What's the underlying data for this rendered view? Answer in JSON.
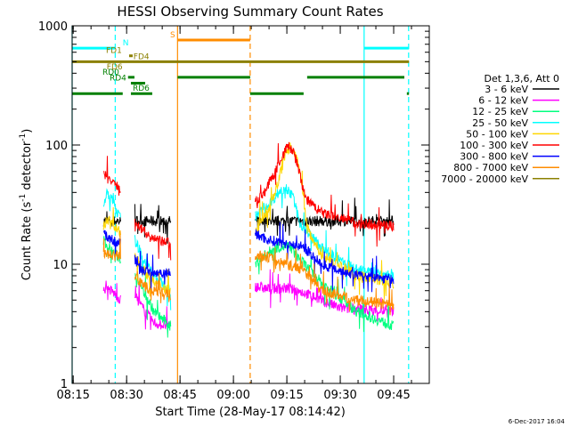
{
  "chart_data": {
    "type": "line",
    "title": "HESSI Observing Summary Count Rates",
    "xlabel": "Start Time (28-May-17 08:14:42)",
    "ylabel_parts": [
      "Count Rate (s",
      "-1",
      " detector",
      "-1",
      ")"
    ],
    "y_log": true,
    "ylim": [
      1,
      1000
    ],
    "xlim_minutes": [
      0,
      100.3
    ],
    "x_ticks": [
      {
        "label": "08:15",
        "min": 0.3
      },
      {
        "label": "08:30",
        "min": 15.3
      },
      {
        "label": "08:45",
        "min": 30.3
      },
      {
        "label": "09:00",
        "min": 45.3
      },
      {
        "label": "09:15",
        "min": 60.3
      },
      {
        "label": "09:30",
        "min": 75.3
      },
      {
        "label": "09:45",
        "min": 90.3
      }
    ],
    "y_ticks": [
      {
        "label": "1",
        "value": 1
      },
      {
        "label": "10",
        "value": 10
      },
      {
        "label": "100",
        "value": 100
      },
      {
        "label": "1000",
        "value": 1000
      }
    ],
    "legend": {
      "placement": "right",
      "title": "Det 1,3,6, Att 0",
      "entries": [
        {
          "label": "3 - 6 keV",
          "color": "#000000"
        },
        {
          "label": "6 - 12 keV",
          "color": "#ff00ff"
        },
        {
          "label": "12 - 25 keV",
          "color": "#00ff7f"
        },
        {
          "label": "25 - 50 keV",
          "color": "#00ffff"
        },
        {
          "label": "50 - 100 keV",
          "color": "#ffd700"
        },
        {
          "label": "100 - 300 keV",
          "color": "#ff0000"
        },
        {
          "label": "300 - 800 keV",
          "color": "#0000ff"
        },
        {
          "label": "800 - 7000 keV",
          "color": "#ff8c00"
        },
        {
          "label": "7000 - 20000 keV",
          "color": "#8b8000"
        }
      ]
    },
    "flag_bars": [
      {
        "label": "N",
        "color": "#00ffff",
        "y": 650,
        "segments": [
          [
            0,
            12
          ],
          [
            82,
            94.6
          ]
        ],
        "label_min": 14.2
      },
      {
        "label": "S",
        "color": "#ff8c00",
        "y": 760,
        "segments": [
          [
            29.6,
            50
          ]
        ],
        "label_min": 27.5
      },
      {
        "label": "FD1",
        "color": "#8b8000",
        "y": 560,
        "segments": [
          [
            16,
            17
          ]
        ],
        "label_min": 9.5
      },
      {
        "label": "FD4",
        "color": "#8b8000",
        "y": 500,
        "segments": [
          [
            0,
            94.6
          ]
        ],
        "label_min": 17.2
      },
      {
        "label": "FD6",
        "color": "#8b8000",
        "y": 410,
        "segments": [],
        "label_min": 9.7
      },
      {
        "label": "RD0",
        "color": "#008000",
        "y": 370,
        "segments": [
          [
            15.7,
            17.5
          ],
          [
            29.6,
            50
          ],
          [
            66,
            93.3
          ]
        ],
        "label_min": 8.5
      },
      {
        "label": "RD4",
        "color": "#008000",
        "y": 330,
        "segments": [
          [
            16.5,
            20.5
          ]
        ],
        "label_min": 10.5
      },
      {
        "label": "RD6",
        "color": "#008000",
        "y": 270,
        "segments": [
          [
            0,
            14.2
          ],
          [
            16.5,
            22.5
          ],
          [
            50,
            65
          ],
          [
            94,
            94.6
          ]
        ],
        "label_min": 17
      }
    ],
    "vertical_lines": [
      {
        "min": 0,
        "color": "#00ffff",
        "style": "solid"
      },
      {
        "min": 12.1,
        "color": "#00ffff",
        "style": "dashed"
      },
      {
        "min": 29.6,
        "color": "#ff8c00",
        "style": "solid"
      },
      {
        "min": 50,
        "color": "#ff8c00",
        "style": "dashed"
      },
      {
        "min": 82,
        "color": "#00ffff",
        "style": "solid"
      },
      {
        "min": 94.5,
        "color": "#00ffff",
        "style": "dashed"
      }
    ],
    "series": [
      {
        "name": "3 - 6 keV",
        "color": "#000000",
        "segments": [
          {
            "x": [
              8.8,
              13.6
            ],
            "y": [
              23,
              23
            ]
          },
          {
            "x": [
              17.6,
              27.8
            ],
            "y": [
              23,
              23
            ]
          },
          {
            "x": [
              51.4,
              90.3
            ],
            "y": [
              23,
              23
            ]
          }
        ]
      },
      {
        "name": "6 - 12 keV",
        "color": "#ff00ff",
        "segments": [
          {
            "x": [
              8.8,
              11,
              13.6
            ],
            "y": [
              6.3,
              6,
              5
            ]
          },
          {
            "x": [
              17.6,
              20,
              23,
              27.8
            ],
            "y": [
              5.5,
              4.2,
              3.2,
              3
            ]
          },
          {
            "x": [
              51.4,
              55,
              60,
              65,
              75,
              90.3
            ],
            "y": [
              6.5,
              6.2,
              6.3,
              5.8,
              4.3,
              4
            ]
          }
        ]
      },
      {
        "name": "12 - 25 keV",
        "color": "#00ff7f",
        "segments": [
          {
            "x": [
              8.8,
              11,
              13.6
            ],
            "y": [
              16,
              13,
              11
            ]
          },
          {
            "x": [
              17.6,
              20,
              23,
              27.8
            ],
            "y": [
              8.5,
              6,
              4,
              3
            ]
          },
          {
            "x": [
              51.4,
              55,
              58,
              61,
              64,
              70,
              80,
              90.3
            ],
            "y": [
              10,
              12.5,
              14,
              14,
              11,
              7,
              4,
              3
            ]
          }
        ]
      },
      {
        "name": "25 - 50 keV",
        "color": "#00ffff",
        "segments": [
          {
            "x": [
              8.8,
              10,
              11.5,
              13,
              13.6
            ],
            "y": [
              32,
              40,
              33,
              26,
              24
            ]
          },
          {
            "x": [
              17.6,
              20,
              23,
              27.8
            ],
            "y": [
              16,
              11,
              8,
              6
            ]
          },
          {
            "x": [
              51.4,
              55,
              58,
              60,
              62,
              64,
              68,
              72,
              80,
              90.3
            ],
            "y": [
              25,
              31,
              40,
              45,
              36,
              22,
              16,
              12,
              9,
              8
            ]
          }
        ]
      },
      {
        "name": "50 - 100 keV",
        "color": "#ffd700",
        "segments": [
          {
            "x": [
              8.8,
              10,
              11.5,
              13.6
            ],
            "y": [
              21,
              24,
              21,
              18
            ]
          },
          {
            "x": [
              17.6,
              20,
              23,
              27.8
            ],
            "y": [
              12,
              9,
              7,
              6
            ]
          },
          {
            "x": [
              51.4,
              54,
              57,
              60,
              61,
              63,
              64.5,
              66,
              70,
              80,
              90.3
            ],
            "y": [
              18,
              25,
              40,
              85,
              95,
              80,
              45,
              20,
              12,
              8,
              7
            ]
          }
        ]
      },
      {
        "name": "100 - 300 keV",
        "color": "#ff0000",
        "segments": [
          {
            "x": [
              8.8,
              10,
              11.5,
              13,
              13.6
            ],
            "y": [
              58,
              52,
              48,
              44,
              40
            ]
          },
          {
            "x": [
              17.6,
              19,
              21,
              23,
              27.8
            ],
            "y": [
              25,
              20,
              18,
              16,
              15
            ]
          },
          {
            "x": [
              51.4,
              54,
              57,
              59,
              60.5,
              62,
              63.5,
              65,
              66.5,
              70,
              80,
              90.3
            ],
            "y": [
              33,
              40,
              60,
              80,
              98,
              90,
              65,
              40,
              33,
              27,
              22,
              21
            ]
          }
        ]
      },
      {
        "name": "300 - 800 keV",
        "color": "#0000ff",
        "segments": [
          {
            "x": [
              8.8,
              11,
              13.6
            ],
            "y": [
              18,
              16,
              15
            ]
          },
          {
            "x": [
              17.6,
              19,
              22,
              27.8
            ],
            "y": [
              11,
              9,
              8.5,
              8.5
            ]
          },
          {
            "x": [
              51.4,
              55,
              60,
              65,
              70,
              80,
              90.3
            ],
            "y": [
              18,
              16,
              15,
              14,
              10,
              8,
              7.5
            ]
          }
        ]
      },
      {
        "name": "800 - 7000 keV",
        "color": "#ff8c00",
        "segments": [
          {
            "x": [
              8.8,
              11,
              13.6
            ],
            "y": [
              12,
              12,
              12
            ]
          },
          {
            "x": [
              17.6,
              20,
              23,
              27.8
            ],
            "y": [
              8,
              6.5,
              6,
              5.5
            ]
          },
          {
            "x": [
              51.4,
              55,
              60,
              65,
              70,
              80,
              90.3
            ],
            "y": [
              12,
              11.5,
              10,
              9,
              6,
              5,
              4.5
            ]
          }
        ]
      },
      {
        "name": "7000 - 20000 keV",
        "color": "#8b8000",
        "segments": []
      }
    ],
    "footer_stamp": "6-Dec-2017 16:04"
  }
}
